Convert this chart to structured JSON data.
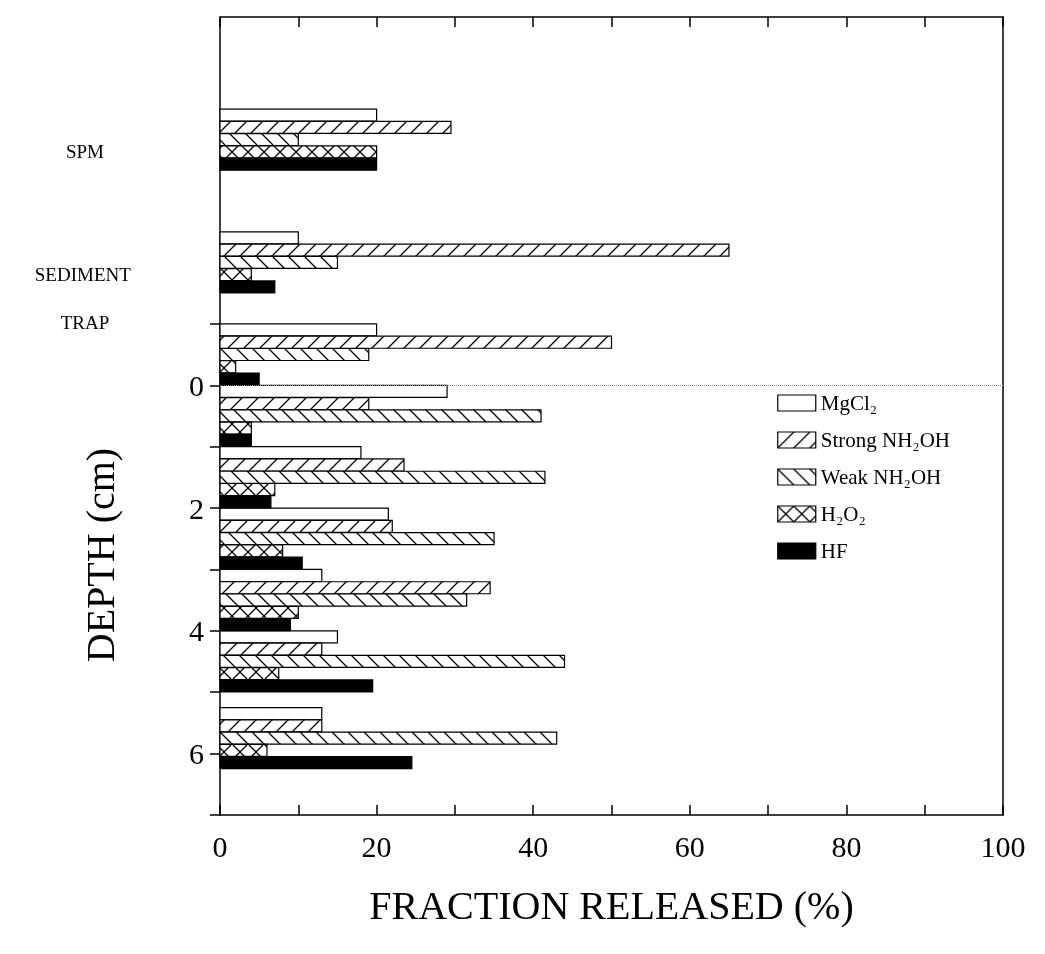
{
  "chart_data": {
    "type": "bar",
    "orientation": "horizontal",
    "xlabel": "FRACTION RELEASED (%)",
    "ylabel": "DEPTH (cm)",
    "x": [
      -4,
      -2,
      -0.5,
      0.5,
      1.5,
      2.5,
      3.5,
      4.5,
      5.75
    ],
    "series": [
      {
        "name": "MgCl₂",
        "color": "#ffffff",
        "values": [
          20,
          10,
          20,
          29,
          18,
          21.5,
          13,
          15,
          13
        ]
      },
      {
        "name": "Strong NH₂OH",
        "color": "#000000",
        "values": [
          29.5,
          65,
          50,
          19,
          23.5,
          22,
          34.5,
          13,
          13
        ]
      },
      {
        "name": "Weak NH₂OH",
        "color": "#000000",
        "values": [
          10,
          15,
          19,
          41,
          41.5,
          35,
          31.5,
          44,
          43
        ]
      },
      {
        "name": "H₂O₂",
        "color": "#000000",
        "values": [
          20,
          4,
          2,
          4,
          7,
          8,
          10,
          7.5,
          6
        ]
      },
      {
        "name": "HF",
        "color": "#000000",
        "values": [
          20,
          7,
          5,
          4,
          6.5,
          10.5,
          9,
          19.5,
          24.5
        ]
      }
    ],
    "xlim": [
      0,
      100
    ],
    "xticks": [
      0,
      {
        "value": 10,
        "label": null
      },
      20,
      {
        "value": 30,
        "label": null
      },
      40,
      {
        "value": 50,
        "label": null
      },
      60,
      {
        "value": 70,
        "label": null
      },
      80,
      {
        "value": 90,
        "label": null
      },
      100
    ],
    "ylim": [
      7,
      -6
    ],
    "yticks": [
      {
        "value": -1,
        "label": null
      },
      0,
      {
        "value": 1,
        "label": null
      },
      2,
      {
        "value": 3,
        "label": null
      },
      4,
      {
        "value": 5,
        "label": null
      },
      6,
      {
        "value": 7,
        "label": null
      }
    ],
    "ref_lines": [
      {
        "axis": "y",
        "value": 0,
        "line_style": "dotted",
        "color": "#888888"
      }
    ],
    "annotations": [
      "SPM",
      "SEDIMENT TRAP"
    ],
    "legend": "right",
    "grid": false
  }
}
